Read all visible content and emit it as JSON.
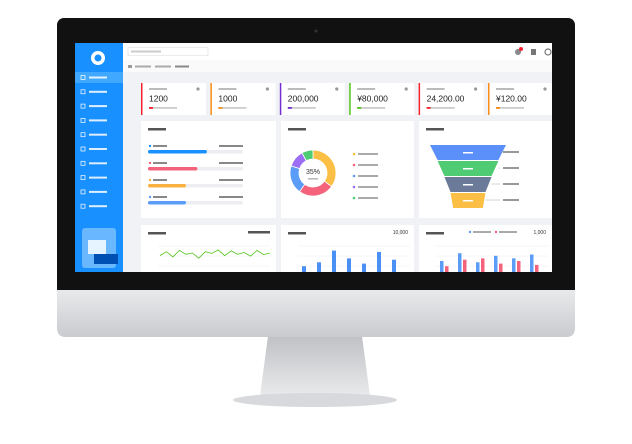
{
  "stats": [
    {
      "value": "1200",
      "color": "#f5222d"
    },
    {
      "value": "1000",
      "color": "#fa8c16"
    },
    {
      "value": "200,000",
      "color": "#722ed1"
    },
    {
      "value": "¥80,000",
      "color": "#52c41a"
    },
    {
      "value": "24,200.00",
      "color": "#f5222d"
    },
    {
      "value": "¥120.00",
      "color": "#fa8c16"
    }
  ],
  "progress": {
    "xlim": [
      0,
      100
    ],
    "items": [
      {
        "value": 62,
        "color": "#1890ff"
      },
      {
        "value": 52,
        "color": "#f5627b"
      },
      {
        "value": 40,
        "color": "#fbb040"
      },
      {
        "value": 40,
        "color": "#5b9cf6"
      }
    ]
  },
  "donut": {
    "center_label": "35%",
    "segments": [
      {
        "value": 35,
        "color": "#fbbf45"
      },
      {
        "value": 25,
        "color": "#f5627b"
      },
      {
        "value": 20,
        "color": "#5b9cf6"
      },
      {
        "value": 12,
        "color": "#9c6ef5"
      },
      {
        "value": 8,
        "color": "#4ecb73"
      }
    ]
  },
  "funnel": {
    "xlim": [
      0,
      100
    ],
    "values": [
      100,
      80,
      62,
      46
    ],
    "colors": [
      "#5b8ff9",
      "#4ecb73",
      "#6b7a99",
      "#fbbf45"
    ]
  },
  "trend": {
    "ylim": [
      0,
      100
    ],
    "color": "#52c41a",
    "values": [
      40,
      55,
      35,
      60,
      45,
      50,
      30,
      55,
      48,
      62,
      40,
      58,
      45,
      52,
      38,
      60,
      44,
      50
    ]
  },
  "weekly": {
    "total_label": "10,000",
    "ylim": [
      0,
      100
    ],
    "color": "#4a90f5",
    "values": [
      30,
      45,
      90,
      60,
      40,
      85,
      55
    ]
  },
  "monthly": {
    "total_label": "1,000",
    "ylim": [
      0,
      100
    ],
    "series": [
      {
        "color": "#5b9cf6",
        "values": [
          50,
          80,
          45,
          70,
          60,
          75
        ]
      },
      {
        "color": "#f5627b",
        "values": [
          30,
          55,
          60,
          40,
          50,
          35
        ]
      }
    ]
  }
}
